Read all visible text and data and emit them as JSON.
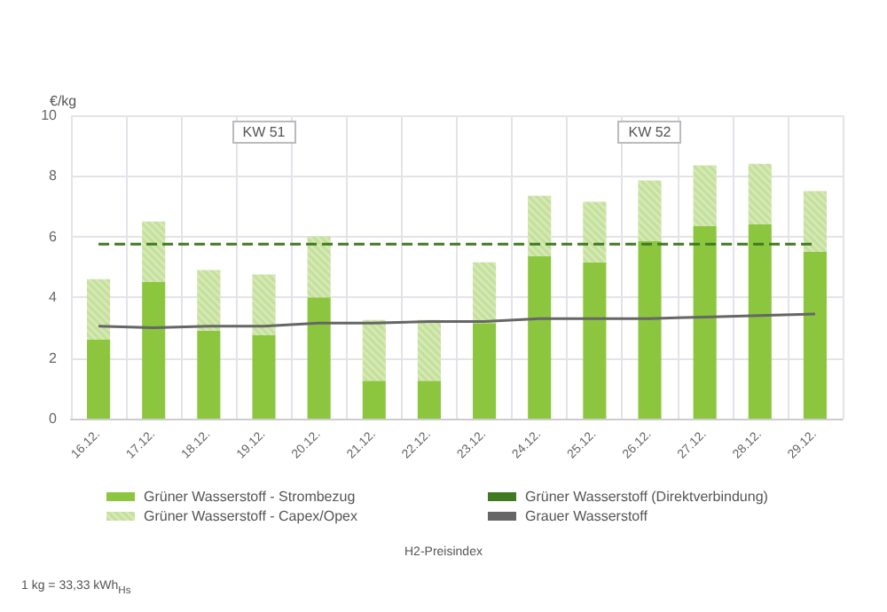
{
  "chart_data": {
    "type": "bar",
    "stacked": true,
    "ylabel": "€/kg",
    "categories": [
      "16.12.",
      "17.12.",
      "18.12.",
      "19.12.",
      "20.12.",
      "21.12.",
      "22.12.",
      "23.12.",
      "24.12.",
      "25.12.",
      "26.12.",
      "27.12.",
      "28.12.",
      "29.12."
    ],
    "series": [
      {
        "name": "Grüner Wasserstoff - Strombezug",
        "color": "#8cc63f",
        "values": [
          2.6,
          4.5,
          2.9,
          2.75,
          4.0,
          1.25,
          1.25,
          3.15,
          5.35,
          5.15,
          5.85,
          6.35,
          6.4,
          5.5
        ]
      },
      {
        "name": "Grüner Wasserstoff - Capex/Opex",
        "color": "#c4e09a",
        "values": [
          2.0,
          2.0,
          2.0,
          2.0,
          2.0,
          2.0,
          2.0,
          2.0,
          2.0,
          2.0,
          2.0,
          2.0,
          2.0,
          2.0
        ]
      },
      {
        "name": "Grüner Wasserstoff (Direktverbindung)",
        "type": "line",
        "line_style": "dashed",
        "color": "#3f7a22",
        "values": [
          5.75,
          5.75,
          5.75,
          5.75,
          5.75,
          5.75,
          5.75,
          5.75,
          5.75,
          5.75,
          5.75,
          5.75,
          5.75,
          5.75
        ]
      },
      {
        "name": "Grauer Wasserstoff",
        "type": "line",
        "line_style": "solid",
        "color": "#666666",
        "values": [
          3.05,
          3.0,
          3.05,
          3.05,
          3.15,
          3.15,
          3.2,
          3.2,
          3.3,
          3.3,
          3.3,
          3.35,
          3.4,
          3.45
        ]
      }
    ],
    "ylim": [
      0,
      10
    ],
    "yticks": [
      0,
      2,
      4,
      6,
      8,
      10
    ],
    "grid": true,
    "legend": "bottom",
    "marker": "none",
    "annotations": [
      "KW 51",
      "KW 52",
      "H2-Preisindex",
      "1 kg = 33,33 kWh$_{Hs}$"
    ]
  }
}
